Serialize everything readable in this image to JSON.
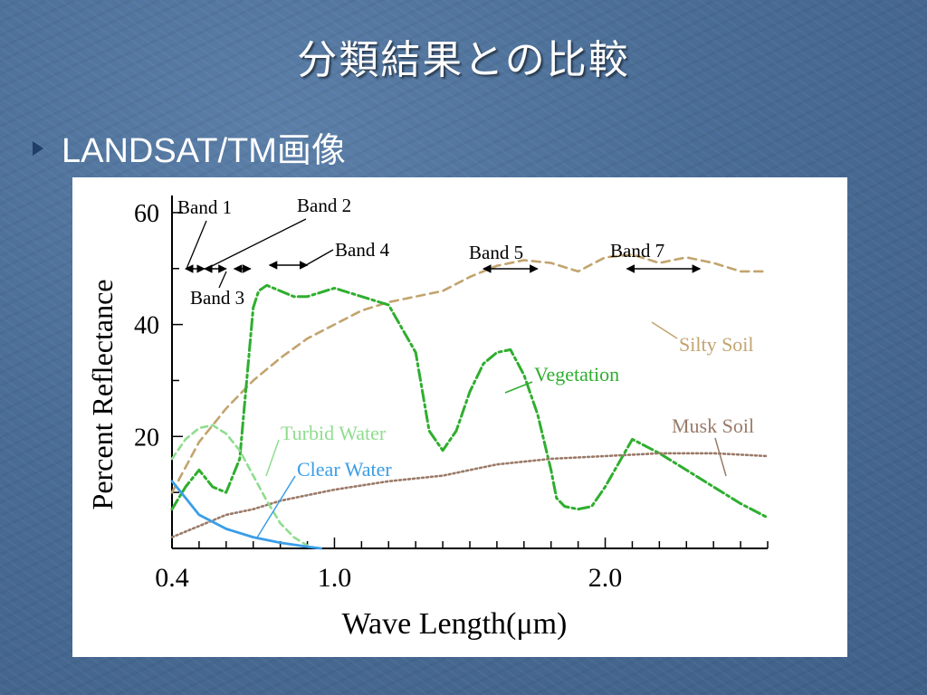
{
  "slide": {
    "title": "分類結果との比較",
    "bullet": "LANDSAT/TM画像"
  },
  "chart_data": {
    "type": "line",
    "xlabel": "Wave Length(μm)",
    "ylabel": "Percent Reflectance",
    "xlim": [
      0.4,
      2.6
    ],
    "ylim": [
      0,
      65
    ],
    "x_ticks": [
      0.4,
      1.0,
      2.0
    ],
    "x_tick_labels": [
      "0.4",
      "1.0",
      "2.0"
    ],
    "y_ticks": [
      20,
      40,
      60
    ],
    "y_tick_labels": [
      "20",
      "40",
      "60"
    ],
    "colors": {
      "silty_soil": "#c2a46e",
      "vegetation": "#2fae2f",
      "musk_soil": "#9a7a68",
      "turbid_water": "#8fdd8f",
      "clear_water": "#3a9ee8",
      "bands": "#000000"
    },
    "bands": [
      {
        "label": "Band 1",
        "range": [
          0.45,
          0.52
        ]
      },
      {
        "label": "Band 2",
        "range": [
          0.52,
          0.6
        ]
      },
      {
        "label": "Band 3",
        "range": [
          0.63,
          0.69
        ]
      },
      {
        "label": "Band 4",
        "range": [
          0.76,
          0.9
        ]
      },
      {
        "label": "Band 5",
        "range": [
          1.55,
          1.75
        ]
      },
      {
        "label": "Band 7",
        "range": [
          2.08,
          2.35
        ]
      }
    ],
    "series": [
      {
        "name": "Silty Soil",
        "style": "dashed",
        "x": [
          0.4,
          0.5,
          0.6,
          0.7,
          0.8,
          0.9,
          1.0,
          1.1,
          1.2,
          1.3,
          1.4,
          1.5,
          1.6,
          1.7,
          1.8,
          1.9,
          2.0,
          2.1,
          2.2,
          2.3,
          2.4,
          2.5,
          2.6
        ],
        "y": [
          10,
          19,
          25,
          30,
          34,
          37.5,
          40,
          42.5,
          44,
          45,
          46,
          48.5,
          50.5,
          51.5,
          51,
          49.5,
          52,
          52.5,
          51,
          52,
          51,
          49.5,
          49.5
        ]
      },
      {
        "name": "Vegetation",
        "style": "dashdot",
        "x": [
          0.4,
          0.45,
          0.5,
          0.55,
          0.6,
          0.65,
          0.7,
          0.72,
          0.75,
          0.8,
          0.85,
          0.9,
          1.0,
          1.1,
          1.2,
          1.3,
          1.35,
          1.4,
          1.45,
          1.5,
          1.55,
          1.6,
          1.65,
          1.7,
          1.75,
          1.8,
          1.82,
          1.85,
          1.9,
          1.95,
          2.0,
          2.1,
          2.2,
          2.3,
          2.4,
          2.5,
          2.6
        ],
        "y": [
          7,
          11,
          14,
          11,
          10,
          16,
          43,
          46,
          47,
          46,
          45,
          45,
          46.5,
          45,
          43.5,
          35,
          21,
          17.5,
          21,
          28,
          33,
          35,
          35.5,
          31,
          24,
          14,
          9,
          7.5,
          7,
          7.5,
          11,
          19.5,
          17,
          14,
          11,
          8,
          5.5
        ]
      },
      {
        "name": "Musk Soil",
        "style": "dotted",
        "x": [
          0.4,
          0.5,
          0.6,
          0.7,
          0.8,
          0.9,
          1.0,
          1.2,
          1.4,
          1.6,
          1.8,
          2.0,
          2.2,
          2.4,
          2.6
        ],
        "y": [
          2,
          4,
          6,
          7,
          8.5,
          9.5,
          10.5,
          12,
          13,
          15,
          16,
          16.5,
          17,
          17,
          16.5
        ]
      },
      {
        "name": "Turbid Water",
        "style": "dashed",
        "x": [
          0.4,
          0.45,
          0.5,
          0.55,
          0.6,
          0.65,
          0.7,
          0.75,
          0.8,
          0.85,
          0.9
        ],
        "y": [
          16,
          19.5,
          21.5,
          22,
          20.5,
          17.5,
          13,
          8.5,
          4.5,
          2,
          0.5
        ]
      },
      {
        "name": "Clear Water",
        "style": "solid",
        "x": [
          0.4,
          0.45,
          0.5,
          0.6,
          0.7,
          0.8,
          0.9,
          0.95
        ],
        "y": [
          12,
          9,
          6,
          3.5,
          2,
          1,
          0.3,
          0
        ]
      }
    ]
  }
}
